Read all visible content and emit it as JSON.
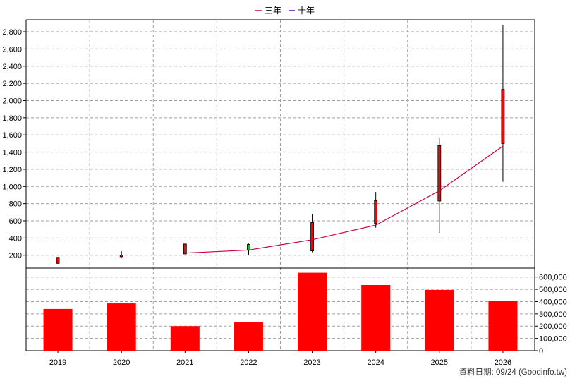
{
  "chart_data": {
    "type": "candlestick+bar",
    "categories": [
      "2019",
      "2020",
      "2021",
      "2022",
      "2023",
      "2024",
      "2025",
      "2026"
    ],
    "legend": [
      {
        "name": "三年",
        "color": "#cc0044"
      },
      {
        "name": "十年",
        "color": "#6600cc"
      }
    ],
    "price_axis": {
      "ylim": [
        50,
        2940
      ],
      "ticks": [
        200,
        400,
        600,
        800,
        1000,
        1200,
        1400,
        1600,
        1800,
        2000,
        2200,
        2400,
        2600,
        2800
      ],
      "tick_labels": [
        "200",
        "400",
        "600",
        "800",
        "1,000",
        "1,200",
        "1,400",
        "1,600",
        "1,800",
        "2,000",
        "2,200",
        "2,400",
        "2,600",
        "2,800"
      ]
    },
    "volume_axis": {
      "ylim": [
        0,
        650000
      ],
      "ticks": [
        0,
        100000,
        200000,
        300000,
        400000,
        500000,
        600000
      ],
      "tick_labels": [
        "0",
        "100,000",
        "200,000",
        "300,000",
        "400,000",
        "500,000",
        "600,000"
      ]
    },
    "candles": [
      {
        "x": "2019",
        "open": 105,
        "close": 175,
        "high": 180,
        "low": 100,
        "color": "#ff0000"
      },
      {
        "x": "2020",
        "open": 182,
        "close": 202,
        "high": 245,
        "low": 175,
        "color": "#ff0000"
      },
      {
        "x": "2021",
        "open": 215,
        "close": 330,
        "high": 335,
        "low": 210,
        "color": "#ff0000"
      },
      {
        "x": "2022",
        "open": 325,
        "close": 258,
        "high": 335,
        "low": 200,
        "color": "#00cc00"
      },
      {
        "x": "2023",
        "open": 250,
        "close": 580,
        "high": 680,
        "low": 235,
        "color": "#ff0000"
      },
      {
        "x": "2024",
        "open": 570,
        "close": 835,
        "high": 935,
        "low": 520,
        "color": "#ff0000"
      },
      {
        "x": "2025",
        "open": 830,
        "close": 1475,
        "high": 1560,
        "low": 460,
        "color": "#ff0000"
      },
      {
        "x": "2026",
        "open": 1500,
        "close": 2130,
        "high": 2880,
        "low": 1055,
        "color": "#ff0000"
      }
    ],
    "series": [
      {
        "name": "三年",
        "color": "#cc0044",
        "x": [
          "2021",
          "2022",
          "2023",
          "2024",
          "2025",
          "2026"
        ],
        "values": [
          225,
          260,
          380,
          550,
          950,
          1470
        ]
      }
    ],
    "volume": [
      340000,
      385000,
      200000,
      230000,
      635000,
      535000,
      495000,
      405000
    ],
    "volume_color": "#ff0000",
    "grid": true
  },
  "footer": {
    "text": "資料日期: 09/24  (Goodinfo.tw)"
  }
}
